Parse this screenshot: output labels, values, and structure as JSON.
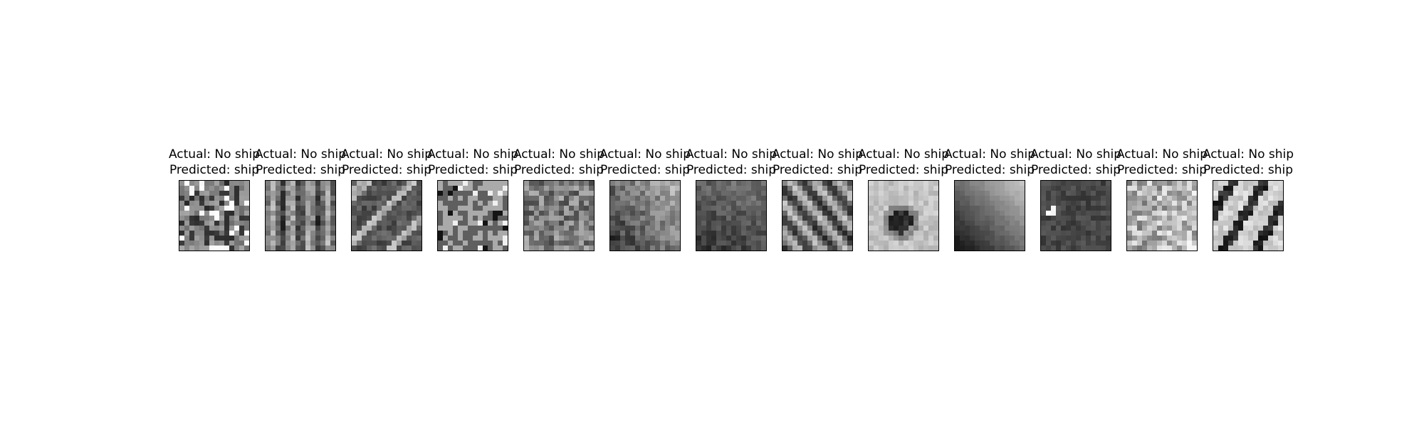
{
  "figure": {
    "panels": [
      {
        "actual": "Actual: No ship",
        "predicted": "Predicted: ship",
        "texture": "noise-mid"
      },
      {
        "actual": "Actual: No ship",
        "predicted": "Predicted: ship",
        "texture": "vertical-streaks"
      },
      {
        "actual": "Actual: No ship",
        "predicted": "Predicted: ship",
        "texture": "dark-diagonal"
      },
      {
        "actual": "Actual: No ship",
        "predicted": "Predicted: ship",
        "texture": "light-blocky"
      },
      {
        "actual": "Actual: No ship",
        "predicted": "Predicted: ship",
        "texture": "mid-mottled"
      },
      {
        "actual": "Actual: No ship",
        "predicted": "Predicted: ship",
        "texture": "mid-brighter-top-right"
      },
      {
        "actual": "Actual: No ship",
        "predicted": "Predicted: ship",
        "texture": "dark-smooth"
      },
      {
        "actual": "Actual: No ship",
        "predicted": "Predicted: ship",
        "texture": "diagonal-waves"
      },
      {
        "actual": "Actual: No ship",
        "predicted": "Predicted: ship",
        "texture": "light-with-dark-center"
      },
      {
        "actual": "Actual: No ship",
        "predicted": "Predicted: ship",
        "texture": "diagonal-gradient"
      },
      {
        "actual": "Actual: No ship",
        "predicted": "Predicted: ship",
        "texture": "dark-with-bright-spot"
      },
      {
        "actual": "Actual: No ship",
        "predicted": "Predicted: ship",
        "texture": "light-noisy"
      },
      {
        "actual": "Actual: No ship",
        "predicted": "Predicted: ship",
        "texture": "light-with-dark-arc"
      }
    ]
  }
}
